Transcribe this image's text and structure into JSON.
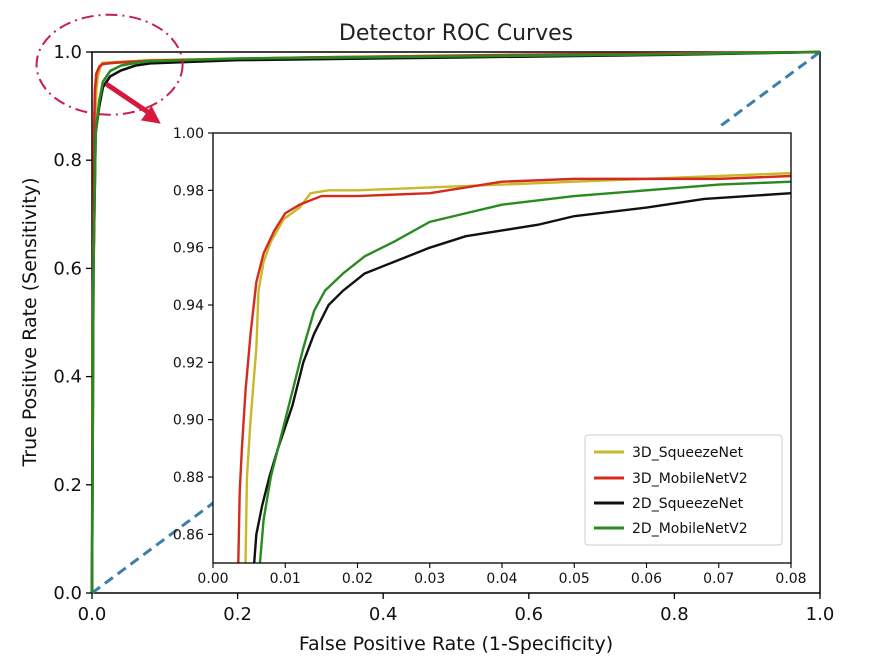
{
  "chart_data": [
    {
      "type": "line",
      "title": "Detector ROC Curves",
      "xlabel": "False Positive Rate (1-Specificity)",
      "ylabel": "True Positive Rate (Sensitivity)",
      "xlim": [
        0,
        1
      ],
      "ylim": [
        0,
        1
      ],
      "xticks": [
        "0.0",
        "0.2",
        "0.4",
        "0.6",
        "0.8",
        "1.0"
      ],
      "yticks": [
        "0.0",
        "0.2",
        "0.4",
        "0.6",
        "0.8",
        "1.0"
      ],
      "grid": false,
      "diagonal": {
        "style": "dashed",
        "color": "#3b7fad",
        "points": [
          [
            0,
            0
          ],
          [
            1,
            1
          ]
        ]
      },
      "series": [
        {
          "name": "3D_SqueezeNet",
          "color": "#c8b928",
          "points": [
            [
              0,
              0
            ],
            [
              0.001,
              0.5
            ],
            [
              0.004,
              0.86
            ],
            [
              0.006,
              0.93
            ],
            [
              0.008,
              0.955
            ],
            [
              0.012,
              0.975
            ],
            [
              0.014,
              0.98
            ],
            [
              0.03,
              0.981
            ],
            [
              0.08,
              0.985
            ],
            [
              0.3,
              0.99
            ],
            [
              0.6,
              0.994
            ],
            [
              1,
              1
            ]
          ]
        },
        {
          "name": "3D_MobileNetV2",
          "color": "#d42b1e",
          "points": [
            [
              0,
              0
            ],
            [
              0.001,
              0.5
            ],
            [
              0.003,
              0.86
            ],
            [
              0.004,
              0.93
            ],
            [
              0.006,
              0.96
            ],
            [
              0.01,
              0.973
            ],
            [
              0.015,
              0.978
            ],
            [
              0.03,
              0.98
            ],
            [
              0.08,
              0.984
            ],
            [
              0.3,
              0.99
            ],
            [
              0.6,
              0.995
            ],
            [
              1,
              1
            ]
          ]
        },
        {
          "name": "2D_SqueezeNet",
          "color": "#111111",
          "points": [
            [
              0,
              0
            ],
            [
              0.002,
              0.6
            ],
            [
              0.005,
              0.85
            ],
            [
              0.01,
              0.9
            ],
            [
              0.015,
              0.935
            ],
            [
              0.025,
              0.955
            ],
            [
              0.04,
              0.966
            ],
            [
              0.06,
              0.975
            ],
            [
              0.08,
              0.979
            ],
            [
              0.2,
              0.985
            ],
            [
              0.5,
              0.99
            ],
            [
              0.8,
              0.995
            ],
            [
              1,
              1
            ]
          ]
        },
        {
          "name": "2D_MobileNetV2",
          "color": "#2a8a22",
          "points": [
            [
              0,
              0
            ],
            [
              0.002,
              0.6
            ],
            [
              0.005,
              0.85
            ],
            [
              0.01,
              0.91
            ],
            [
              0.015,
              0.945
            ],
            [
              0.025,
              0.965
            ],
            [
              0.04,
              0.975
            ],
            [
              0.06,
              0.98
            ],
            [
              0.08,
              0.983
            ],
            [
              0.2,
              0.988
            ],
            [
              0.5,
              0.992
            ],
            [
              0.8,
              0.996
            ],
            [
              1,
              1
            ]
          ]
        }
      ],
      "annotations": [
        {
          "type": "dash-dot-ellipse",
          "color": "#c81e4a",
          "center": [
            0.02,
            0.995
          ]
        },
        {
          "type": "arrow",
          "color": "#d8193f",
          "from": [
            0.03,
            0.95
          ],
          "to": [
            0.1,
            0.86
          ]
        }
      ]
    },
    {
      "type": "line",
      "title": "",
      "xlim": [
        0,
        0.08
      ],
      "ylim": [
        0.85,
        1.0
      ],
      "xticks": [
        "0.00",
        "0.01",
        "0.02",
        "0.03",
        "0.04",
        "0.05",
        "0.06",
        "0.07",
        "0.08"
      ],
      "yticks": [
        "0.86",
        "0.88",
        "0.90",
        "0.92",
        "0.94",
        "0.96",
        "0.98",
        "1.00"
      ],
      "legend": "lower-right",
      "series": [
        {
          "name": "3D_SqueezeNet",
          "color": "#c8b928",
          "points": [
            [
              0.0045,
              0.85
            ],
            [
              0.0047,
              0.88
            ],
            [
              0.0052,
              0.9
            ],
            [
              0.006,
              0.925
            ],
            [
              0.0063,
              0.945
            ],
            [
              0.007,
              0.955
            ],
            [
              0.008,
              0.962
            ],
            [
              0.0098,
              0.97
            ],
            [
              0.012,
              0.974
            ],
            [
              0.0135,
              0.979
            ],
            [
              0.016,
              0.98
            ],
            [
              0.02,
              0.98
            ],
            [
              0.03,
              0.981
            ],
            [
              0.04,
              0.982
            ],
            [
              0.05,
              0.983
            ],
            [
              0.06,
              0.984
            ],
            [
              0.07,
              0.985
            ],
            [
              0.08,
              0.986
            ]
          ]
        },
        {
          "name": "3D_MobileNetV2",
          "color": "#d42b1e",
          "points": [
            [
              0.0035,
              0.85
            ],
            [
              0.0037,
              0.875
            ],
            [
              0.004,
              0.89
            ],
            [
              0.0045,
              0.91
            ],
            [
              0.0052,
              0.93
            ],
            [
              0.006,
              0.948
            ],
            [
              0.007,
              0.958
            ],
            [
              0.0085,
              0.966
            ],
            [
              0.01,
              0.972
            ],
            [
              0.012,
              0.975
            ],
            [
              0.015,
              0.978
            ],
            [
              0.02,
              0.978
            ],
            [
              0.03,
              0.979
            ],
            [
              0.04,
              0.983
            ],
            [
              0.05,
              0.984
            ],
            [
              0.06,
              0.984
            ],
            [
              0.07,
              0.984
            ],
            [
              0.08,
              0.985
            ]
          ]
        },
        {
          "name": "2D_SqueezeNet",
          "color": "#111111",
          "points": [
            [
              0.0057,
              0.85
            ],
            [
              0.006,
              0.86
            ],
            [
              0.0068,
              0.87
            ],
            [
              0.0078,
              0.88
            ],
            [
              0.009,
              0.89
            ],
            [
              0.011,
              0.905
            ],
            [
              0.0125,
              0.92
            ],
            [
              0.014,
              0.93
            ],
            [
              0.016,
              0.94
            ],
            [
              0.018,
              0.945
            ],
            [
              0.021,
              0.951
            ],
            [
              0.025,
              0.955
            ],
            [
              0.03,
              0.96
            ],
            [
              0.035,
              0.964
            ],
            [
              0.04,
              0.966
            ],
            [
              0.045,
              0.968
            ],
            [
              0.05,
              0.971
            ],
            [
              0.06,
              0.974
            ],
            [
              0.068,
              0.977
            ],
            [
              0.074,
              0.978
            ],
            [
              0.08,
              0.979
            ]
          ]
        },
        {
          "name": "2D_MobileNetV2",
          "color": "#2a8a22",
          "points": [
            [
              0.0065,
              0.85
            ],
            [
              0.007,
              0.865
            ],
            [
              0.008,
              0.88
            ],
            [
              0.0095,
              0.895
            ],
            [
              0.011,
              0.91
            ],
            [
              0.0125,
              0.925
            ],
            [
              0.014,
              0.938
            ],
            [
              0.0155,
              0.945
            ],
            [
              0.018,
              0.951
            ],
            [
              0.021,
              0.957
            ],
            [
              0.025,
              0.962
            ],
            [
              0.03,
              0.969
            ],
            [
              0.035,
              0.972
            ],
            [
              0.04,
              0.975
            ],
            [
              0.05,
              0.978
            ],
            [
              0.06,
              0.98
            ],
            [
              0.07,
              0.982
            ],
            [
              0.08,
              0.983
            ]
          ]
        }
      ]
    }
  ]
}
